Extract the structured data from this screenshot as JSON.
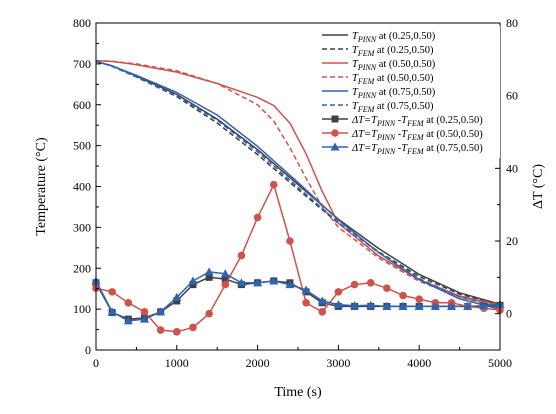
{
  "chart_data": {
    "type": "line",
    "xlabel": "Time (s)",
    "ylabel_left": "Temperature (°C)",
    "ylabel_right": "ΔT (°C)",
    "xlim": [
      0,
      5000
    ],
    "ylim_left": [
      0,
      800
    ],
    "ylim_right": [
      -10,
      80
    ],
    "x_ticks": [
      0,
      1000,
      2000,
      3000,
      4000,
      5000
    ],
    "y_left_ticks": [
      0,
      100,
      200,
      300,
      400,
      500,
      600,
      700,
      800
    ],
    "y_right_ticks": [
      0,
      20,
      40,
      60,
      80
    ],
    "grid": false,
    "legend_position": "top-right",
    "colors": {
      "p025": "#404040",
      "p050": "#d0524d",
      "p075": "#2e64b4"
    },
    "series": [
      {
        "axis": "left",
        "style": "solid",
        "color": "#404040",
        "legend": {
          "main": "T",
          "sub": "PINN",
          "tail": " at (0.25,0.50)"
        },
        "x": [
          0,
          200,
          500,
          1000,
          1500,
          2000,
          2500,
          3000,
          3500,
          4000,
          4500,
          5000
        ],
        "y": [
          706,
          695,
          670,
          625,
          565,
          490,
          405,
          320,
          248,
          185,
          140,
          112
        ]
      },
      {
        "axis": "left",
        "style": "dashed",
        "color": "#404040",
        "legend": {
          "main": "T",
          "sub": "FEM",
          "tail": " at (0.25,0.50)"
        },
        "x": [
          0,
          200,
          500,
          1000,
          1500,
          2000,
          2500,
          3000,
          3500,
          4000,
          4500,
          5000
        ],
        "y": [
          706,
          694,
          668,
          620,
          555,
          478,
          393,
          310,
          240,
          180,
          137,
          110
        ]
      },
      {
        "axis": "left",
        "style": "solid",
        "color": "#d0524d",
        "legend": {
          "main": "T",
          "sub": "PINN",
          "tail": " at (0.50,0.50)"
        },
        "x": [
          0,
          200,
          500,
          1000,
          1500,
          2000,
          2200,
          2400,
          2600,
          2800,
          3000,
          3500,
          4000,
          4500,
          5000
        ],
        "y": [
          708,
          706,
          698,
          680,
          652,
          618,
          598,
          555,
          480,
          388,
          310,
          230,
          172,
          132,
          110
        ]
      },
      {
        "axis": "left",
        "style": "dashed",
        "color": "#d0524d",
        "legend": {
          "main": "T",
          "sub": "FEM",
          "tail": " at (0.50,0.50)"
        },
        "x": [
          0,
          200,
          500,
          1000,
          1500,
          2000,
          2200,
          2400,
          2600,
          2800,
          3000,
          3500,
          4000,
          4500,
          5000
        ],
        "y": [
          708,
          706,
          700,
          683,
          652,
          600,
          560,
          495,
          420,
          350,
          300,
          225,
          168,
          130,
          108
        ]
      },
      {
        "axis": "left",
        "style": "solid",
        "color": "#2e64b4",
        "legend": {
          "main": "T",
          "sub": "PINN",
          "tail": " at (0.75,0.50)"
        },
        "x": [
          0,
          200,
          500,
          1000,
          1500,
          2000,
          2500,
          3000,
          3500,
          4000,
          4500,
          5000
        ],
        "y": [
          706,
          695,
          672,
          630,
          575,
          498,
          410,
          318,
          238,
          172,
          125,
          100
        ]
      },
      {
        "axis": "left",
        "style": "dashed",
        "color": "#2e64b4",
        "legend": {
          "main": "T",
          "sub": "FEM",
          "tail": " at (0.75,0.50)"
        },
        "x": [
          0,
          200,
          500,
          1000,
          1500,
          2000,
          2500,
          3000,
          3500,
          4000,
          4500,
          5000
        ],
        "y": [
          706,
          694,
          668,
          622,
          562,
          485,
          398,
          312,
          238,
          175,
          130,
          104
        ]
      },
      {
        "axis": "right",
        "style": "marker",
        "marker": "square",
        "color": "#404040",
        "legend": {
          "main": "ΔT=T",
          "sub": "PINN",
          "mid": " -T",
          "sub2": "FEM",
          "tail": " at (0.25,0.50)"
        },
        "x": [
          0,
          200,
          400,
          600,
          800,
          1000,
          1200,
          1400,
          1600,
          1800,
          2000,
          2200,
          2400,
          2600,
          2800,
          3000,
          3200,
          3400,
          3600,
          3800,
          4000,
          4200,
          4400,
          4600,
          4800,
          5000
        ],
        "y": [
          8.5,
          0.3,
          -1.5,
          -1.2,
          0.5,
          3.5,
          8.0,
          10.0,
          9.5,
          8.0,
          8.5,
          9.0,
          8.5,
          6.0,
          3.0,
          2.0,
          2.0,
          2.0,
          2.0,
          2.0,
          2.0,
          2.0,
          2.0,
          2.0,
          2.0,
          2.3
        ]
      },
      {
        "axis": "right",
        "style": "marker",
        "marker": "circle",
        "color": "#d0524d",
        "legend": {
          "main": "ΔT=T",
          "sub": "PINN",
          "mid": " -T",
          "sub2": "FEM",
          "tail": " at (0.50,0.50)"
        },
        "x": [
          0,
          200,
          400,
          600,
          800,
          1000,
          1200,
          1400,
          1600,
          1800,
          2000,
          2200,
          2400,
          2600,
          2800,
          3000,
          3200,
          3400,
          3600,
          3800,
          4000,
          4200,
          4400,
          4600,
          4800,
          5000
        ],
        "y": [
          7.0,
          6.0,
          3.0,
          0.5,
          -4.5,
          -5.0,
          -3.8,
          0,
          8.0,
          16.0,
          26.5,
          35.5,
          20.0,
          3.0,
          0.5,
          6.0,
          8.0,
          8.5,
          7.0,
          5.0,
          4.0,
          3.0,
          3.0,
          2.0,
          1.5,
          1.0
        ]
      },
      {
        "axis": "right",
        "style": "marker",
        "marker": "triangle",
        "color": "#2e64b4",
        "legend": {
          "main": "ΔT=T",
          "sub": "PINN",
          "mid": " -T",
          "sub2": "FEM",
          "tail": " at (0.75,0.50)"
        },
        "x": [
          0,
          200,
          400,
          600,
          800,
          1000,
          1200,
          1400,
          1600,
          1800,
          2000,
          2200,
          2400,
          2600,
          2800,
          3000,
          3200,
          3400,
          3600,
          3800,
          4000,
          4200,
          4400,
          4600,
          4800,
          5000
        ],
        "y": [
          9.0,
          0.5,
          -2.0,
          -1.5,
          0.5,
          4.5,
          9.0,
          11.5,
          11.0,
          8.5,
          8.5,
          9.0,
          8.0,
          6.5,
          3.5,
          2.5,
          2.2,
          2.3,
          2.0,
          2.0,
          2.0,
          2.0,
          2.0,
          2.0,
          2.2,
          2.6
        ]
      }
    ]
  }
}
